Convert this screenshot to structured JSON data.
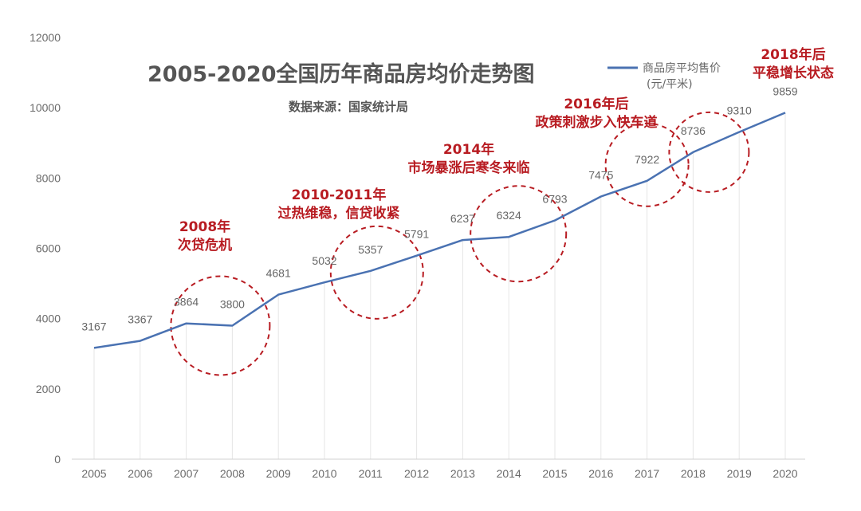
{
  "chart_data": {
    "type": "line",
    "title": "2005-2020全国历年商品房均价走势图",
    "subtitle": "数据来源：国家统计局",
    "x": [
      "2005",
      "2006",
      "2007",
      "2008",
      "2009",
      "2010",
      "2011",
      "2012",
      "2013",
      "2014",
      "2015",
      "2016",
      "2017",
      "2018",
      "2019",
      "2020"
    ],
    "series": [
      {
        "name": "商品房平均售价",
        "unit": "(元/平米)",
        "color": "#4a72b2",
        "values": [
          3167,
          3367,
          3864,
          3800,
          4681,
          5032,
          5357,
          5791,
          6237,
          6324,
          6793,
          7475,
          7922,
          8736,
          9310,
          9859
        ]
      }
    ],
    "ylim": [
      0,
      12000
    ],
    "yticks": [
      "0",
      "2000",
      "4000",
      "6000",
      "8000",
      "10000",
      "12000"
    ],
    "grid": "vertical",
    "legend": "top-right",
    "annotations": [
      {
        "year": "2008",
        "lines": [
          "2008年",
          "次贷危机"
        ],
        "color": "#b81c22"
      },
      {
        "year": "2011",
        "lines": [
          "2010-2011年",
          "过热维稳，信贷收紧"
        ],
        "color": "#b81c22"
      },
      {
        "year": "2014",
        "lines": [
          "2014年",
          "市场暴涨后寒冬来临"
        ],
        "color": "#b81c22"
      },
      {
        "year": "2017",
        "lines": [
          "2016年后",
          "政策刺激步入快车道"
        ],
        "color": "#b81c22"
      },
      {
        "year": "2018",
        "lines": [
          "2018年后",
          "平稳增长状态"
        ],
        "color": "#b81c22"
      }
    ]
  }
}
